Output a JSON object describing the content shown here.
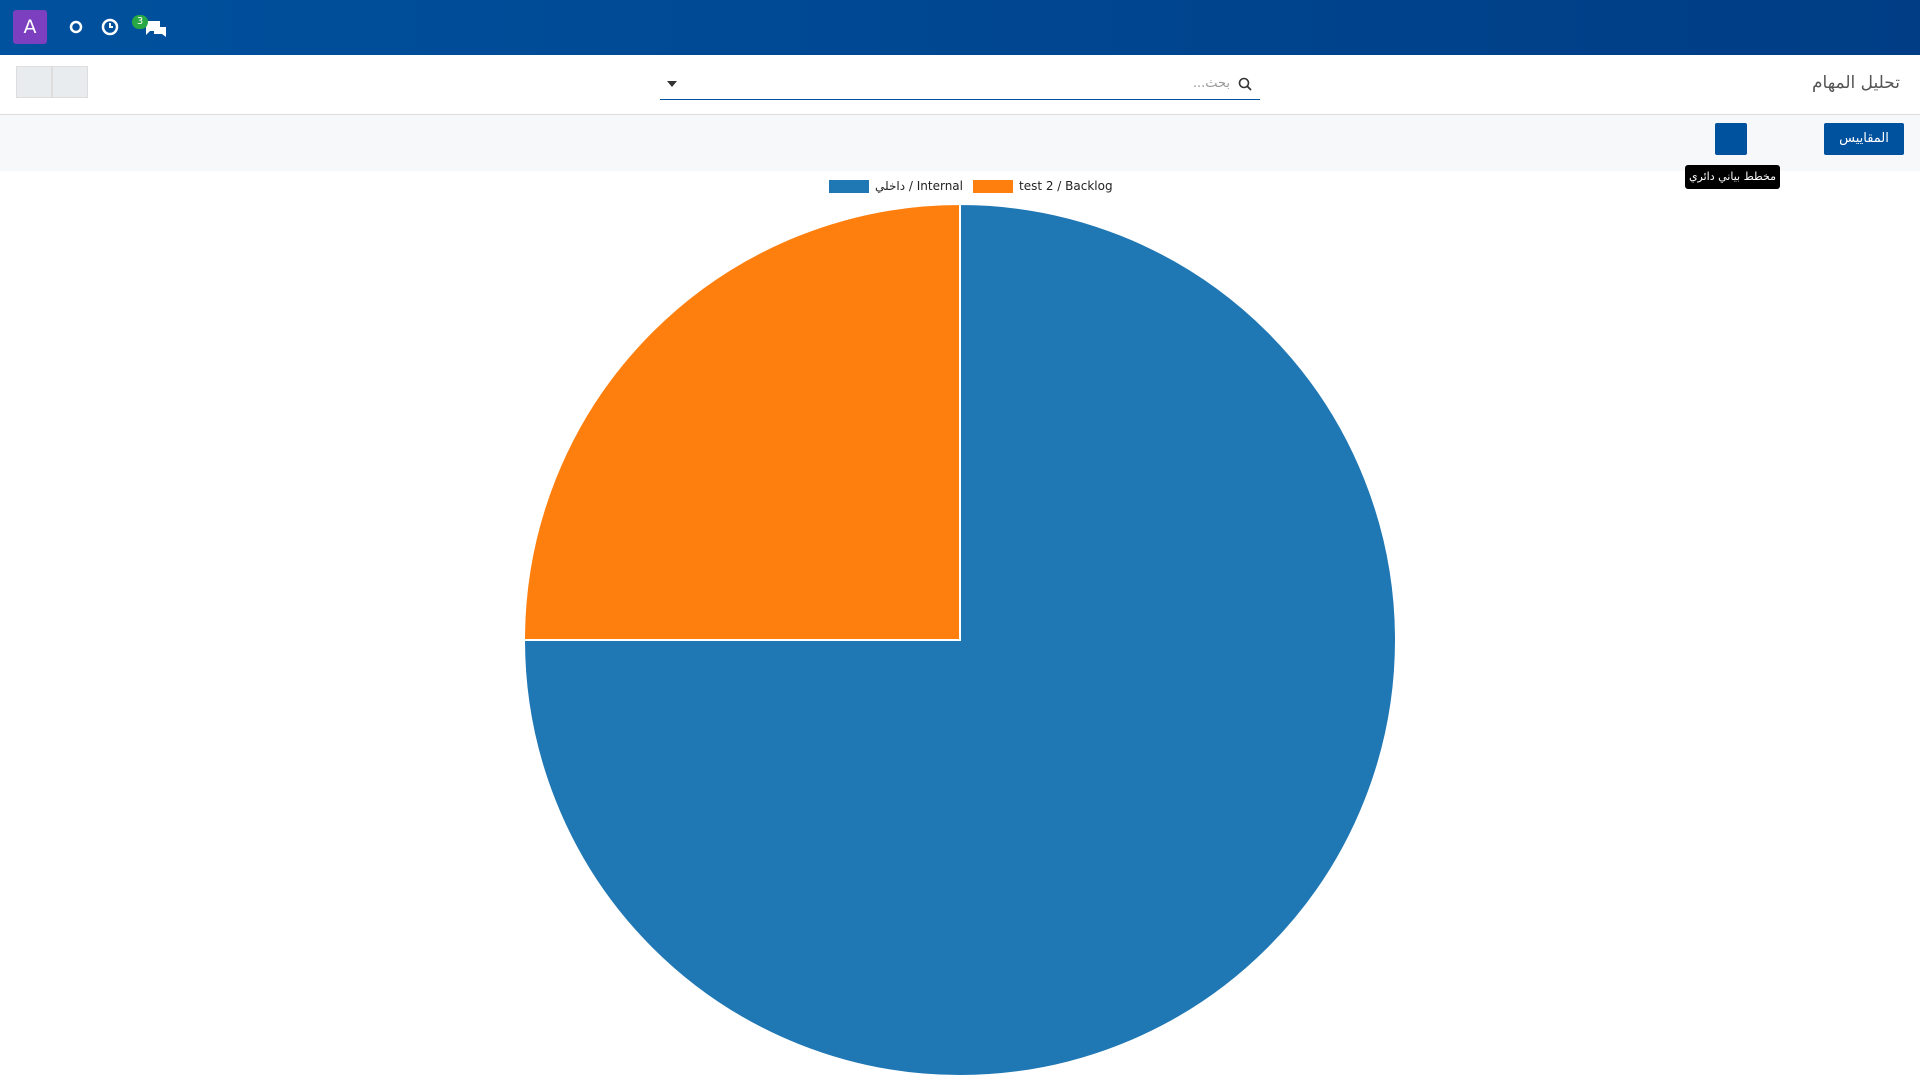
{
  "navbar": {
    "avatar": "A",
    "badge": "3"
  },
  "control_panel": {
    "title": "تحليل المهام",
    "search_placeholder": "بحث...",
    "measures": "المقاييس",
    "tooltip": "مخطط بياني دائري"
  },
  "chart_data": {
    "type": "pie",
    "categories": [
      "داخلي / Internal",
      "test 2 / Backlog"
    ],
    "values": [
      75,
      25
    ],
    "colors": [
      "#1f77b4",
      "#ff7f0e"
    ]
  }
}
